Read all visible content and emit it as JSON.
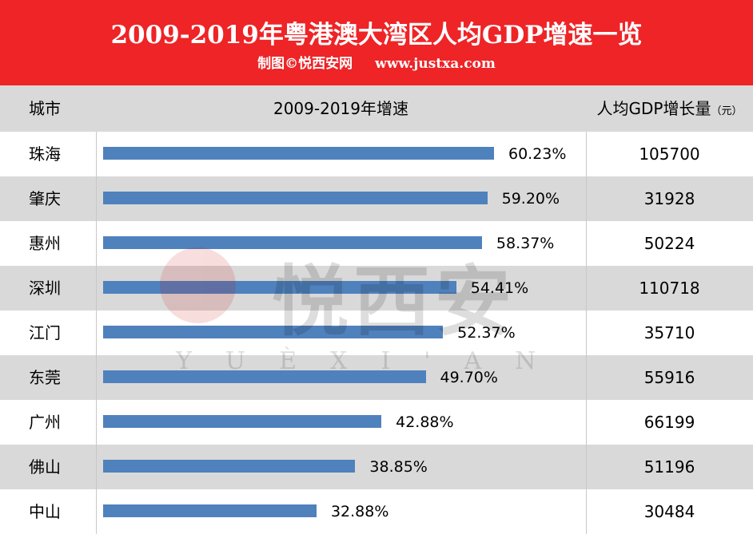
{
  "header": {
    "title": "2009-2019年粤港澳大湾区人均GDP增速一览",
    "credit": "制图©悦西安网",
    "url": "www.justxa.com"
  },
  "columns": {
    "city": "城市",
    "growth": "2009-2019年增速",
    "gdp": "人均GDP增长量",
    "unit": "（元）"
  },
  "watermark": {
    "text": "悦西安",
    "sub": "YUÈXI'AN"
  },
  "colors": {
    "header": "#ee2427",
    "bar": "#4f81bd",
    "stripe": "#d9d9d9"
  },
  "chart_data": {
    "type": "bar",
    "orientation": "horizontal",
    "title": "2009-2019年粤港澳大湾区人均GDP增速一览",
    "categories": [
      "珠海",
      "肇庆",
      "惠州",
      "深圳",
      "江门",
      "东莞",
      "广州",
      "佛山",
      "中山"
    ],
    "values": [
      60.23,
      59.2,
      58.37,
      54.41,
      52.37,
      49.7,
      42.88,
      38.85,
      32.88
    ],
    "labels": [
      "60.23%",
      "59.20%",
      "58.37%",
      "54.41%",
      "52.37%",
      "49.70%",
      "42.88%",
      "38.85%",
      "32.88%"
    ],
    "gdp_increase": [
      "105700",
      "31928",
      "50224",
      "110718",
      "35710",
      "55916",
      "66199",
      "51196",
      "30484"
    ],
    "xlim": [
      0,
      60.23
    ]
  }
}
